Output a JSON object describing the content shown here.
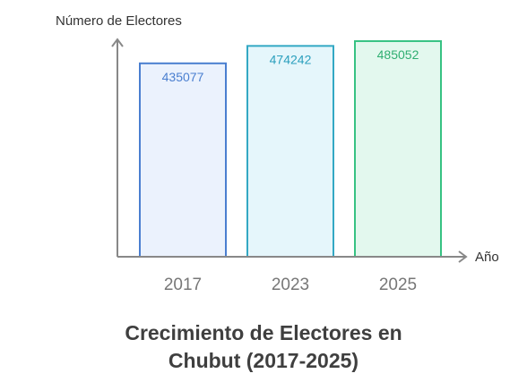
{
  "chart_data": {
    "type": "bar",
    "title_lines": [
      "Crecimiento de Electores en",
      "Chubut (2017-2025)"
    ],
    "xlabel": "Año",
    "ylabel": "Número de Electores",
    "categories": [
      "2017",
      "2023",
      "2025"
    ],
    "values": [
      435077,
      474242,
      485052
    ],
    "grid": false,
    "legend": "none",
    "colors": {
      "stroke": [
        "#4a7fd0",
        "#33a8c4",
        "#37c283"
      ],
      "fill": [
        "#ebf2fd",
        "#e5f6fb",
        "#e3f8ee"
      ],
      "label": [
        "#4a7fd0",
        "#2a9fbd",
        "#2fae71"
      ],
      "axis": "#888888",
      "tick_text": "#777777",
      "axis_label_text": "#333333"
    }
  }
}
